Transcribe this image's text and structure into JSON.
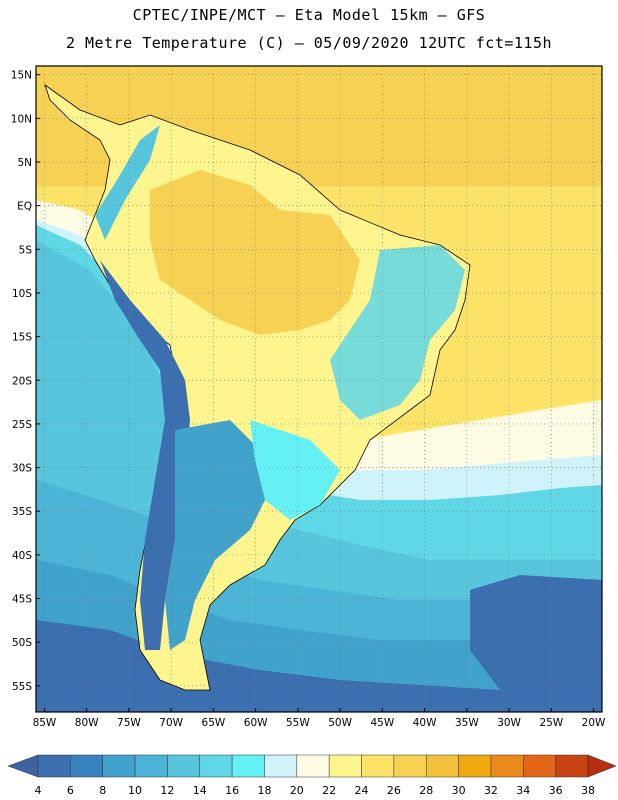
{
  "title_line1": "CPTEC/INPE/MCT –  Eta Model 15km – GFS",
  "title_line2": "2 Metre Temperature (C) – 05/09/2020 12UTC fct=115h",
  "map": {
    "lat_labels": [
      "15N",
      "10N",
      "5N",
      "EQ",
      "5S",
      "10S",
      "15S",
      "20S",
      "25S",
      "30S",
      "35S",
      "40S",
      "45S",
      "50S",
      "55S"
    ],
    "lon_labels": [
      "85W",
      "80W",
      "75W",
      "70W",
      "65W",
      "60W",
      "55W",
      "50W",
      "45W",
      "40W",
      "35W",
      "30W",
      "25W",
      "20W"
    ],
    "gridlines": true,
    "extent": {
      "lon": [
        -86,
        -19
      ],
      "lat": [
        16,
        -58
      ]
    }
  },
  "colorbar": {
    "ticks": [
      "4",
      "6",
      "8",
      "10",
      "12",
      "14",
      "16",
      "18",
      "20",
      "22",
      "24",
      "26",
      "28",
      "30",
      "32",
      "34",
      "36",
      "38"
    ],
    "colors": [
      "#3b6fb0",
      "#3883bf",
      "#41a2cb",
      "#4cb4d7",
      "#57c6dd",
      "#5fd7e6",
      "#65f0f6",
      "#d0f3fb",
      "#fffce6",
      "#fff58f",
      "#fde468",
      "#f7d153",
      "#f2c13b",
      "#f1a911",
      "#e98a1b",
      "#e36617",
      "#c84412",
      "#b52f10"
    ],
    "under_color": "#3c63a3",
    "over_color": "#b52f10"
  }
}
